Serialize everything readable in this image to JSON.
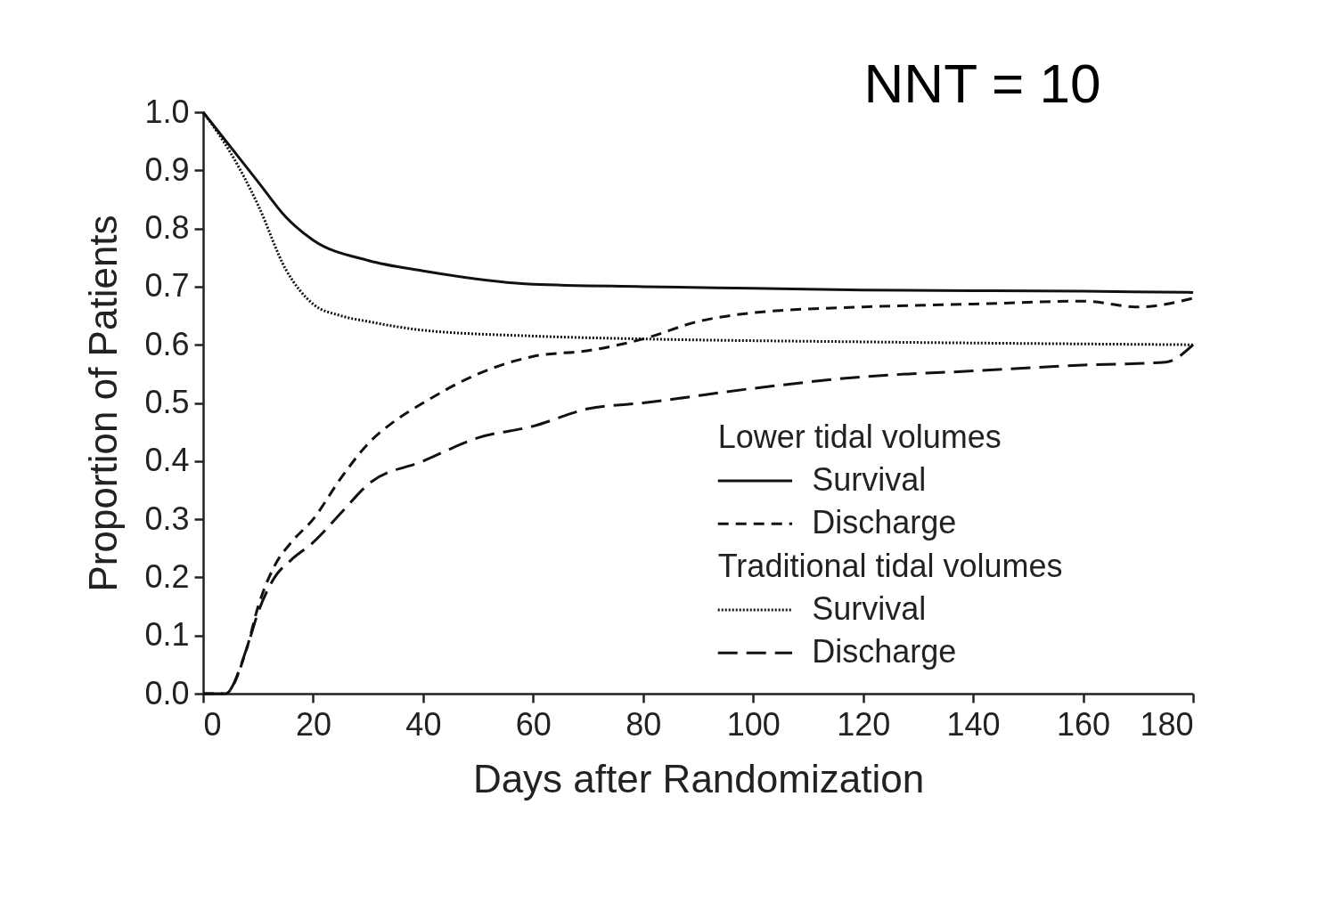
{
  "chart_data": {
    "type": "line",
    "title": "NNT = 10",
    "xlabel": "Days after Randomization",
    "ylabel": "Proportion of Patients",
    "annotations": [
      "Lower tidal volumes",
      "Traditional tidal volumes"
    ],
    "xlim": [
      0,
      180
    ],
    "xticks": [
      0,
      20,
      40,
      60,
      80,
      100,
      120,
      140,
      160,
      180
    ],
    "ylim": [
      0,
      1
    ],
    "yticks": [
      {
        "value": 0,
        "label": "0.0"
      },
      0.1,
      0.2,
      0.3,
      0.4,
      0.5,
      0.6,
      0.7,
      0.8,
      0.9,
      {
        "value": 1,
        "label": "1.0"
      }
    ],
    "grid": false,
    "legend": "bottom right",
    "marker": "none",
    "series": [
      {
        "name": "Survival",
        "color": "#111111",
        "line_style": "solid",
        "x": [
          0,
          5,
          10,
          15,
          20,
          30,
          40,
          60,
          80,
          100,
          120,
          140,
          160,
          180
        ],
        "values": [
          1.0,
          0.94,
          0.88,
          0.82,
          0.78,
          0.745,
          0.727,
          0.704,
          0.7,
          0.697,
          0.694,
          0.693,
          0.692,
          0.69
        ]
      },
      {
        "name": "Discharge",
        "color": "#111111",
        "line_style": "dashed",
        "x": [
          0,
          4,
          8,
          10,
          13,
          16,
          20,
          25,
          30,
          35,
          40,
          50,
          60,
          70,
          80,
          90,
          100,
          120,
          140,
          160,
          170,
          180
        ],
        "values": [
          0,
          0,
          0.08,
          0.15,
          0.22,
          0.26,
          0.3,
          0.37,
          0.43,
          0.47,
          0.5,
          0.55,
          0.58,
          0.59,
          0.61,
          0.64,
          0.655,
          0.665,
          0.67,
          0.675,
          0.665,
          0.68
        ]
      },
      {
        "name": "Survival",
        "color": "#111111",
        "line_style": "dotted",
        "x": [
          0,
          5,
          10,
          15,
          20,
          25,
          30,
          40,
          60,
          80,
          120,
          180
        ],
        "values": [
          1.0,
          0.93,
          0.84,
          0.73,
          0.67,
          0.65,
          0.64,
          0.625,
          0.615,
          0.61,
          0.605,
          0.6
        ]
      },
      {
        "name": "Discharge",
        "color": "#111111",
        "line_style": "dashed",
        "x": [
          0,
          4,
          8,
          10,
          13,
          16,
          20,
          25,
          30,
          40,
          50,
          60,
          70,
          80,
          100,
          120,
          140,
          160,
          175,
          180
        ],
        "values": [
          0,
          0,
          0.08,
          0.14,
          0.2,
          0.23,
          0.26,
          0.31,
          0.36,
          0.4,
          0.44,
          0.46,
          0.49,
          0.5,
          0.525,
          0.545,
          0.555,
          0.565,
          0.57,
          0.6
        ]
      }
    ]
  }
}
